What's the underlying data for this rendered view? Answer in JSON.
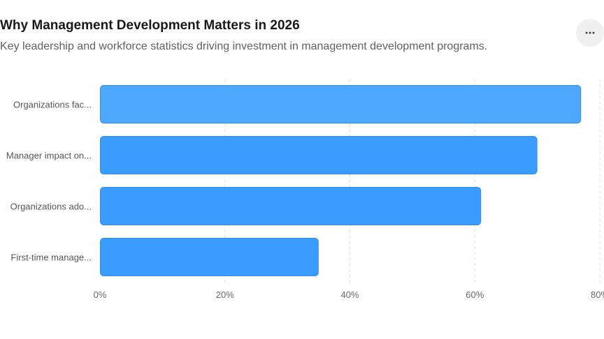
{
  "header": {
    "title": "Why Management Development Matters in 2026",
    "subtitle": "Key leadership and workforce statistics driving investment in management development programs."
  },
  "menu": {
    "icon": "more-horizontal-icon"
  },
  "colors": {
    "bar_first": "#4ea8fe",
    "bar": "#3a9cff",
    "bar_border": "#2b8ef0",
    "grid": "#e3e3e3",
    "axis_text": "#666666",
    "label_text": "#555555"
  },
  "chart_data": {
    "type": "bar",
    "orientation": "horizontal",
    "categories": [
      "Organizations fac...",
      "Manager impact on...",
      "Organizations ado...",
      "First-time manage..."
    ],
    "values": [
      77,
      70,
      61,
      35
    ],
    "unit": "%",
    "xlim": [
      0,
      80
    ],
    "xticks": [
      0,
      20,
      40,
      60,
      80
    ],
    "xtick_labels": [
      "0%",
      "20%",
      "40%",
      "60%",
      "80%"
    ],
    "grid": true,
    "legend": "none"
  }
}
